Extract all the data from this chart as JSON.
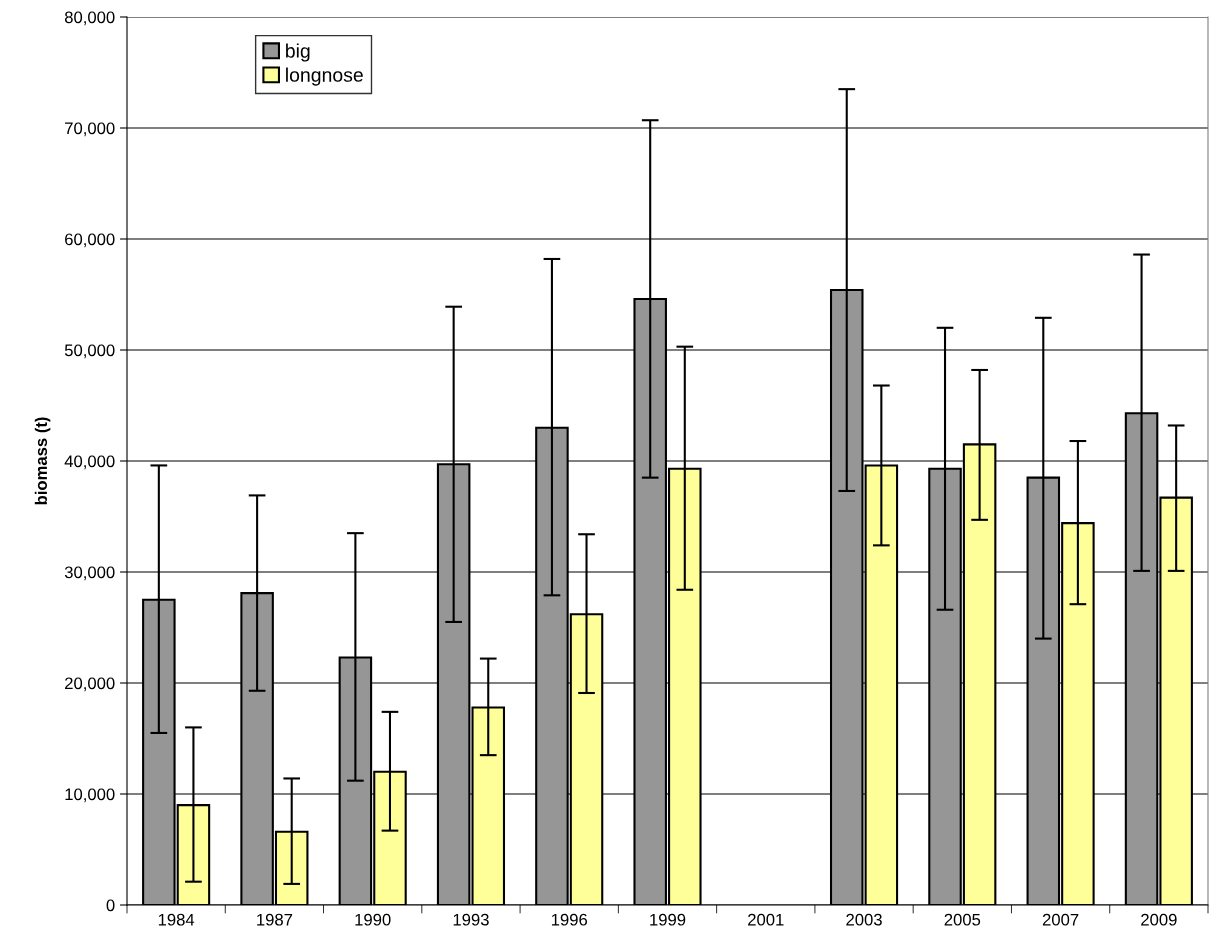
{
  "chart_data": {
    "type": "bar",
    "ylabel": "biomass (t)",
    "categories": [
      "1984",
      "1987",
      "1990",
      "1993",
      "1996",
      "1999",
      "2001",
      "2003",
      "2005",
      "2007",
      "2009"
    ],
    "series": [
      {
        "name": "big",
        "color": "#969696",
        "values": [
          27500,
          28100,
          22300,
          39700,
          43000,
          54600,
          null,
          55400,
          39300,
          38500,
          44300
        ],
        "errors": [
          [
            15500,
            39600
          ],
          [
            19300,
            36900
          ],
          [
            11200,
            33500
          ],
          [
            25500,
            53900
          ],
          [
            27900,
            58200
          ],
          [
            38500,
            70700
          ],
          null,
          [
            37300,
            73500
          ],
          [
            26600,
            52000
          ],
          [
            24000,
            52900
          ],
          [
            30100,
            58600
          ]
        ]
      },
      {
        "name": "longnose",
        "color": "#ffff99",
        "values": [
          9000,
          6600,
          12000,
          17800,
          26200,
          39300,
          null,
          39600,
          41500,
          34400,
          36700
        ],
        "errors": [
          [
            2100,
            16000
          ],
          [
            1900,
            11400
          ],
          [
            6700,
            17400
          ],
          [
            13500,
            22200
          ],
          [
            19100,
            33400
          ],
          [
            28400,
            50300
          ],
          null,
          [
            32400,
            46800
          ],
          [
            34700,
            48200
          ],
          [
            27100,
            41800
          ],
          [
            30100,
            43200
          ]
        ]
      }
    ],
    "ylim": [
      0,
      80000
    ],
    "yticks": [
      {
        "value": 0,
        "label": "0"
      },
      {
        "value": 10000,
        "label": "10,000"
      },
      {
        "value": 20000,
        "label": "20,000"
      },
      {
        "value": 30000,
        "label": "30,000"
      },
      {
        "value": 40000,
        "label": "40,000"
      },
      {
        "value": 50000,
        "label": "50,000"
      },
      {
        "value": 60000,
        "label": "60,000"
      },
      {
        "value": 70000,
        "label": "70,000"
      },
      {
        "value": 80000,
        "label": "80,000"
      }
    ],
    "grid": "y",
    "legend": "top left"
  }
}
